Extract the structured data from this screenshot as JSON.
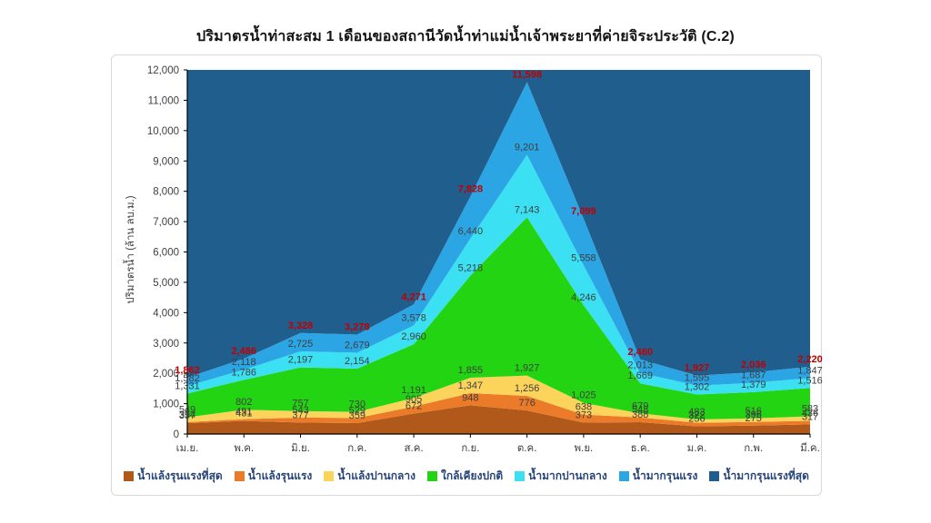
{
  "chart_data": {
    "type": "area",
    "stacked": true,
    "title": "ปริมาตรน้ำท่าสะสม 1 เดือนของสถานีวัดน้ำท่าแม่น้ำเจ้าพระยาที่ค่ายจิระประวัติ (C.2)",
    "ylabel": "ปริมาตรน้ำ (ล้าน ลบ.ม.)",
    "ylim": [
      0,
      12000
    ],
    "ytick_step": 1000,
    "grid": false,
    "legend_position": "bottom",
    "categories": [
      "เม.ย.",
      "พ.ค.",
      "มิ.ย.",
      "ก.ค.",
      "ส.ค.",
      "ก.ย.",
      "ต.ค.",
      "พ.ย.",
      "ธ.ค.",
      "ม.ค.",
      "ก.พ.",
      "มี.ค."
    ],
    "series": [
      {
        "name": "น้ำแล้งรุนแรงที่สุด",
        "color": "#B0591B",
        "cumulative": [
          357,
          431,
          377,
          359,
          672,
          948,
          776,
          373,
          388,
          256,
          275,
          317
        ],
        "show_labels": true
      },
      {
        "name": "น้ำแล้งรุนแรง",
        "color": "#EB7B28",
        "cumulative": [
          394,
          491,
          543,
          529,
          905,
          1347,
          1256,
          638,
          548,
          372,
          396,
          436
        ],
        "show_labels": true
      },
      {
        "name": "น้ำแล้งปานกลาง",
        "color": "#FCD45C",
        "cumulative": [
          549,
          802,
          757,
          730,
          1191,
          1855,
          1927,
          1025,
          679,
          483,
          516,
          583
        ],
        "show_labels": true
      },
      {
        "name": "ใกล้เคียงปกติ",
        "color": "#22D411",
        "cumulative": [
          1331,
          1786,
          2197,
          2154,
          2960,
          5218,
          7143,
          4246,
          1669,
          1302,
          1379,
          1516
        ],
        "show_labels": true
      },
      {
        "name": "น้ำมากปานกลาง",
        "color": "#3BE0F2",
        "cumulative": [
          1582,
          2118,
          2725,
          2679,
          3578,
          6440,
          9201,
          5558,
          2013,
          1595,
          1687,
          1847
        ],
        "show_labels": true
      },
      {
        "name": "น้ำมากรุนแรง",
        "color": "#2BA5E4",
        "cumulative": [
          1862,
          2486,
          3328,
          3278,
          4271,
          7828,
          11598,
          7099,
          2460,
          1927,
          2036,
          2220
        ],
        "show_labels": true,
        "label_color": "#C00000",
        "label_bold": true
      },
      {
        "name": "น้ำมากรุนแรงที่สุด",
        "color": "#205E8E",
        "cumulative": [
          12000,
          12000,
          12000,
          12000,
          12000,
          12000,
          12000,
          12000,
          12000,
          12000,
          12000,
          12000
        ],
        "show_labels": false
      }
    ],
    "colors": {
      "data_label": "#3F3F3F",
      "red_label": "#C00000",
      "axis_line": "#000000",
      "tick_label": "#404040",
      "legend_text": "#264478",
      "frame_border": "#D8D8D8"
    }
  }
}
